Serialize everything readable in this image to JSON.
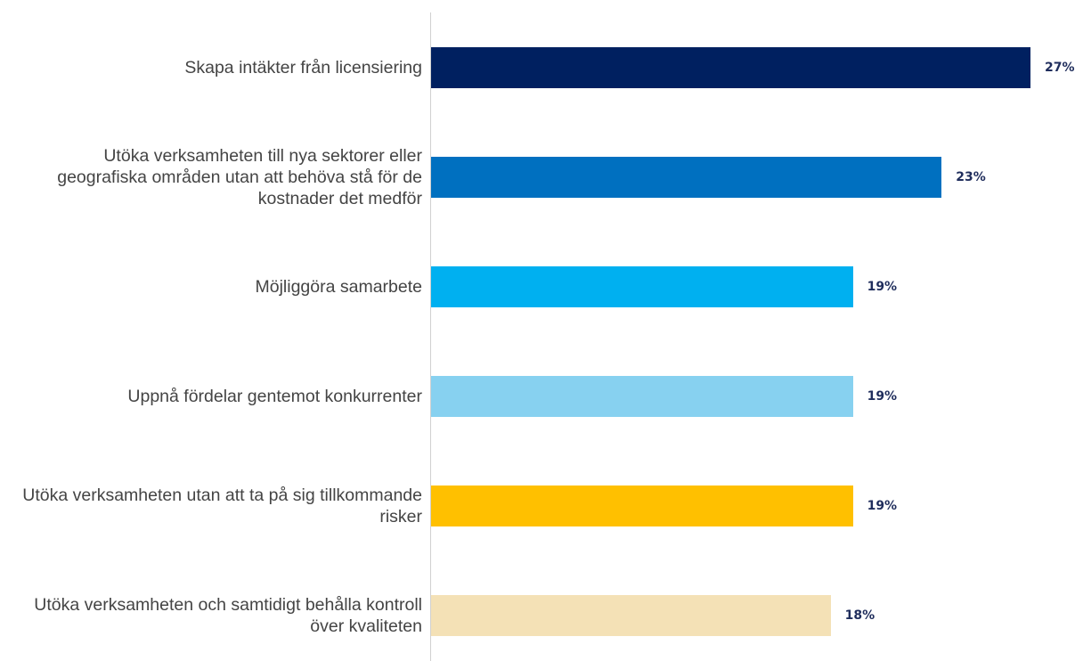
{
  "chart_data": {
    "type": "bar",
    "orientation": "horizontal",
    "categories": [
      "Skapa intäkter från licensiering",
      "Utöka verksamheten till nya sektorer eller geografiska områden utan att behöva stå för de kostnader det medför",
      "Möjliggöra samarbete",
      "Uppnå fördelar gentemot konkurrenter",
      "Utöka verksamheten utan att ta på sig tillkommande risker",
      "Utöka verksamheten och samtidigt behålla kontroll över kvaliteten"
    ],
    "values": [
      27,
      23,
      19,
      19,
      19,
      18
    ],
    "value_labels": [
      "27%",
      "23%",
      "19%",
      "19%",
      "19%",
      "18%"
    ],
    "colors": [
      "#002060",
      "#0070c0",
      "#00b0f0",
      "#87d1f0",
      "#ffc000",
      "#f4e1b6"
    ]
  }
}
